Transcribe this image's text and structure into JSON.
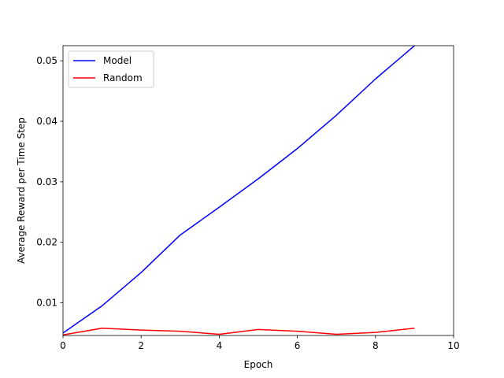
{
  "chart_data": {
    "type": "line",
    "title": "",
    "xlabel": "Epoch",
    "ylabel": "Average Reward per Time Step",
    "xlim": [
      0,
      10
    ],
    "ylim": [
      0.0046,
      0.0525
    ],
    "xticks": [
      0,
      2,
      4,
      6,
      8,
      10
    ],
    "yticks": [
      0.01,
      0.02,
      0.03,
      0.04,
      0.05
    ],
    "xtick_labels": [
      "0",
      "2",
      "4",
      "6",
      "8",
      "10"
    ],
    "ytick_labels": [
      "0.01",
      "0.02",
      "0.03",
      "0.04",
      "0.05"
    ],
    "grid": false,
    "legend_position": "top-left",
    "series": [
      {
        "name": "Model",
        "color": "#0000ff",
        "x": [
          0,
          1,
          2,
          3,
          4,
          5,
          6,
          7,
          8,
          9
        ],
        "y": [
          0.005,
          0.0095,
          0.015,
          0.0212,
          0.0258,
          0.0305,
          0.0355,
          0.041,
          0.047,
          0.0525
        ]
      },
      {
        "name": "Random",
        "color": "#ff0000",
        "x": [
          0,
          1,
          2,
          3,
          4,
          5,
          6,
          7,
          8,
          9
        ],
        "y": [
          0.0047,
          0.0058,
          0.0055,
          0.0053,
          0.0048,
          0.0056,
          0.0053,
          0.0048,
          0.0051,
          0.0058
        ]
      }
    ]
  }
}
